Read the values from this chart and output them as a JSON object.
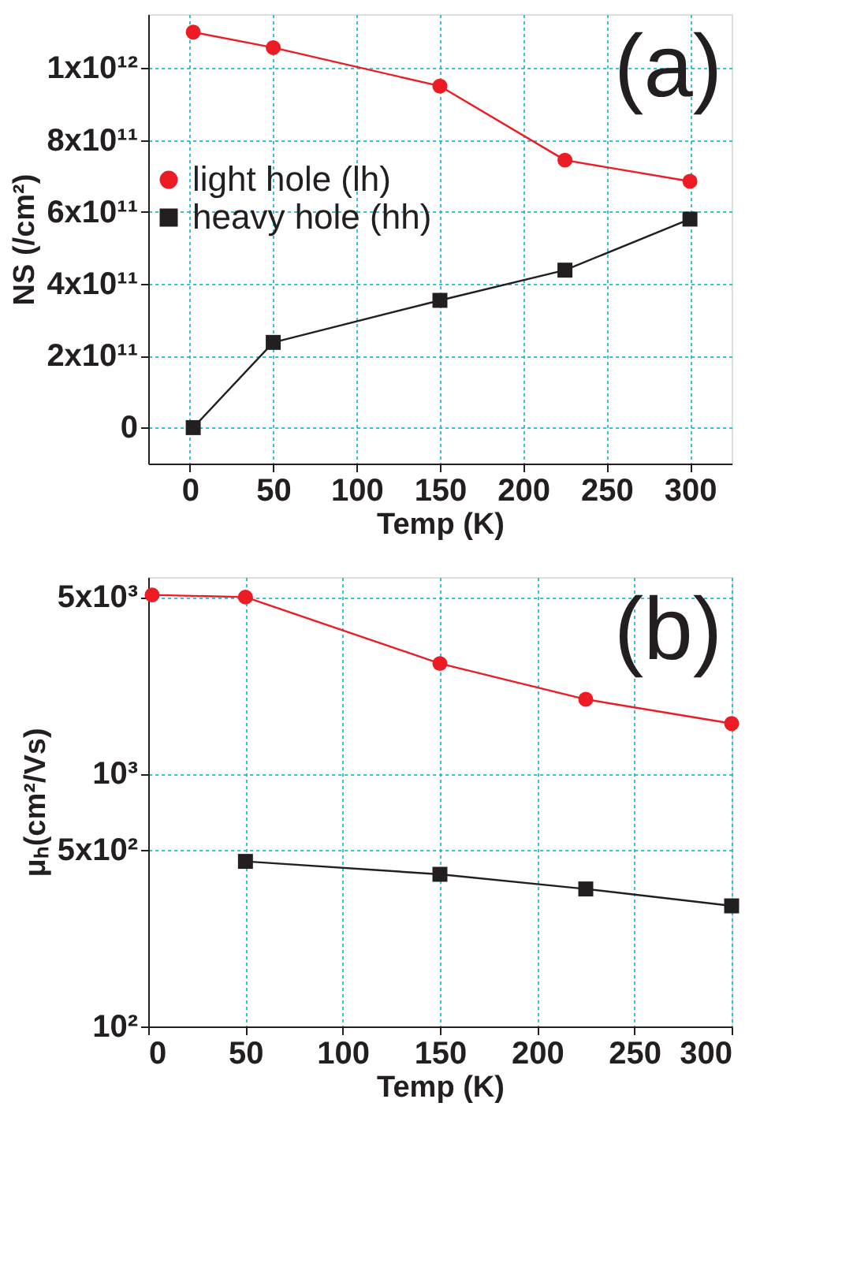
{
  "chart_data": [
    {
      "type": "line",
      "xlabel": "Temp (K)",
      "ylabel": "NS (/cm²)",
      "annotations": [
        "(a)"
      ],
      "xlim": [
        -25,
        325
      ],
      "xticks": [
        0,
        50,
        100,
        150,
        200,
        250,
        300
      ],
      "ylim": [
        -100000000000.0,
        1150000000000.0
      ],
      "yticks": [
        {
          "value": 0,
          "label": "0"
        },
        {
          "value": 200000000000.0,
          "label": "2x10¹¹"
        },
        {
          "value": 400000000000.0,
          "label": "4x10¹¹"
        },
        {
          "value": 600000000000.0,
          "label": "6x10¹¹"
        },
        {
          "value": 800000000000.0,
          "label": "8x10¹¹"
        },
        {
          "value": 1000000000000.0,
          "label": "1x10¹²"
        }
      ],
      "grid": true,
      "legend": "left",
      "line_style": "solid",
      "series": [
        {
          "name": "light hole (lh)",
          "color": "#ed1c24",
          "marker": "circle",
          "x": [
            2,
            50,
            150,
            225,
            300
          ],
          "values": [
            1100000000000.0,
            1057000000000.0,
            950000000000.0,
            744000000000.0,
            685000000000.0
          ]
        },
        {
          "name": "heavy hole (hh)",
          "color": "#231f20",
          "marker": "square",
          "x": [
            2,
            50,
            150,
            225,
            300
          ],
          "values": [
            0,
            237000000000.0,
            354000000000.0,
            438000000000.0,
            580000000000.0
          ]
        }
      ]
    },
    {
      "type": "line",
      "xlabel": "Temp (K)",
      "ylabel": "μₕ(cm²/Vs)",
      "annotations": [
        "(b)"
      ],
      "log": true,
      "xlim": [
        0,
        300
      ],
      "xticks": [
        0,
        50,
        100,
        150,
        200,
        250,
        300
      ],
      "ylim": [
        100,
        6000
      ],
      "yticks": [
        {
          "value": 100,
          "label": "10²"
        },
        {
          "value": 500,
          "label": "5x10²"
        },
        {
          "value": 1000,
          "label": "10³"
        },
        {
          "value": 5000,
          "label": "5x10³"
        }
      ],
      "grid": true,
      "legend": "left",
      "line_style": "solid",
      "series": [
        {
          "name": "light hole (lh)",
          "color": "#ed1c24",
          "marker": "circle",
          "x": [
            2,
            50,
            150,
            225,
            300
          ],
          "values": [
            5100,
            5000,
            2730,
            1970,
            1580
          ]
        },
        {
          "name": "heavy hole (hh)",
          "color": "#231f20",
          "marker": "square",
          "x": [
            50,
            150,
            225,
            300
          ],
          "values": [
            450,
            400,
            350,
            300
          ]
        }
      ]
    }
  ]
}
